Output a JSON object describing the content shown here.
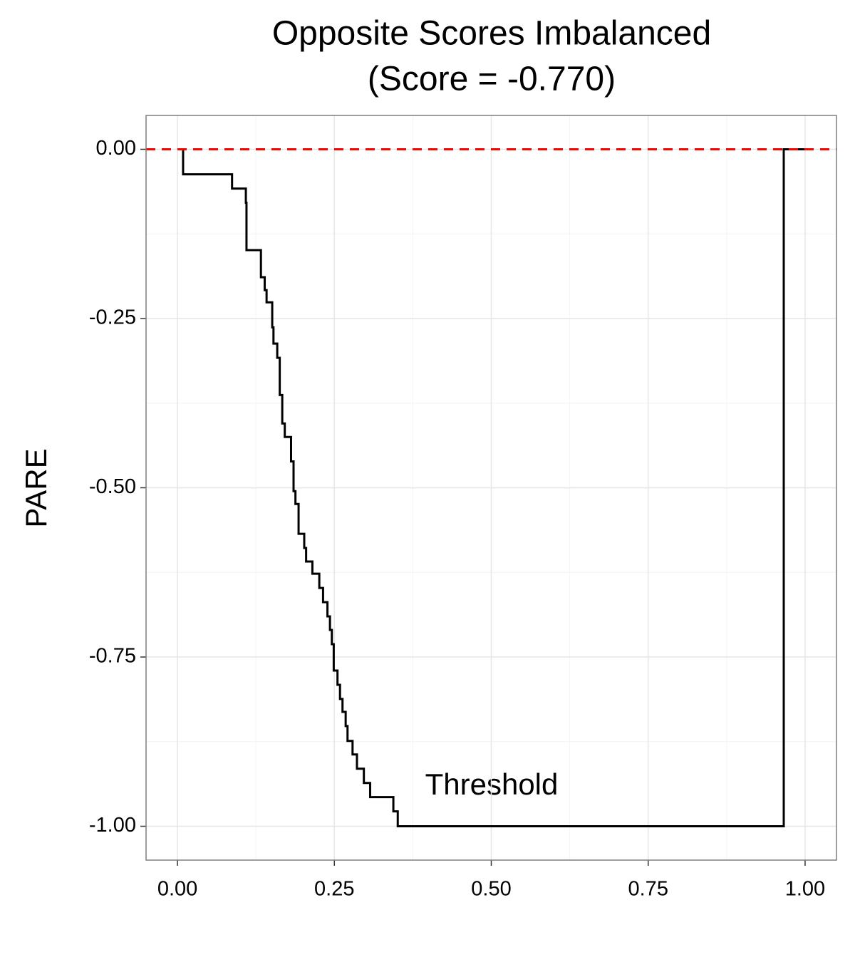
{
  "chart_data": {
    "type": "line",
    "step": "post",
    "title": [
      "Opposite Scores Imbalanced",
      "(Score = -0.770)"
    ],
    "x_label": "Threshold",
    "y_label": "PARE",
    "xlim": [
      -0.05,
      1.05
    ],
    "ylim": [
      -1.05,
      0.05
    ],
    "xticks": [
      {
        "value": 0,
        "label": "0.00"
      },
      {
        "value": 0.25,
        "label": "0.25"
      },
      {
        "value": 0.5,
        "label": "0.50"
      },
      {
        "value": 0.75,
        "label": "0.75"
      },
      {
        "value": 1,
        "label": "1.00"
      }
    ],
    "yticks": [
      {
        "value": 0,
        "label": "0.00"
      },
      {
        "value": -0.25,
        "label": "-0.25"
      },
      {
        "value": -0.5,
        "label": "-0.50"
      },
      {
        "value": -0.75,
        "label": "-0.75"
      },
      {
        "value": -1,
        "label": "-1.00"
      }
    ],
    "minor_xticks": [
      0.125,
      0.375,
      0.625,
      0.875
    ],
    "minor_yticks": [
      -0.125,
      -0.375,
      -0.625,
      -0.875
    ],
    "grid": true,
    "hline": {
      "value": 0,
      "color": "#ff0000",
      "dashed": true
    },
    "series": [
      {
        "color": "#000000",
        "x": [
          0,
          0.009,
          0.087,
          0.109,
          0.11,
          0.133,
          0.139,
          0.142,
          0.151,
          0.153,
          0.159,
          0.163,
          0.167,
          0.171,
          0.181,
          0.185,
          0.188,
          0.193,
          0.202,
          0.205,
          0.215,
          0.226,
          0.232,
          0.239,
          0.243,
          0.246,
          0.249,
          0.255,
          0.259,
          0.263,
          0.268,
          0.271,
          0.279,
          0.286,
          0.297,
          0.307,
          0.344,
          0.351,
          0.966,
          1.0
        ],
        "values": [
          0,
          -0.037,
          -0.058,
          -0.079,
          -0.149,
          -0.189,
          -0.208,
          -0.226,
          -0.263,
          -0.287,
          -0.308,
          -0.363,
          -0.405,
          -0.425,
          -0.461,
          -0.505,
          -0.524,
          -0.568,
          -0.589,
          -0.609,
          -0.627,
          -0.648,
          -0.669,
          -0.69,
          -0.71,
          -0.731,
          -0.77,
          -0.791,
          -0.812,
          -0.831,
          -0.852,
          -0.874,
          -0.894,
          -0.915,
          -0.936,
          -0.957,
          -0.978,
          -1.0,
          0,
          0
        ]
      }
    ]
  }
}
